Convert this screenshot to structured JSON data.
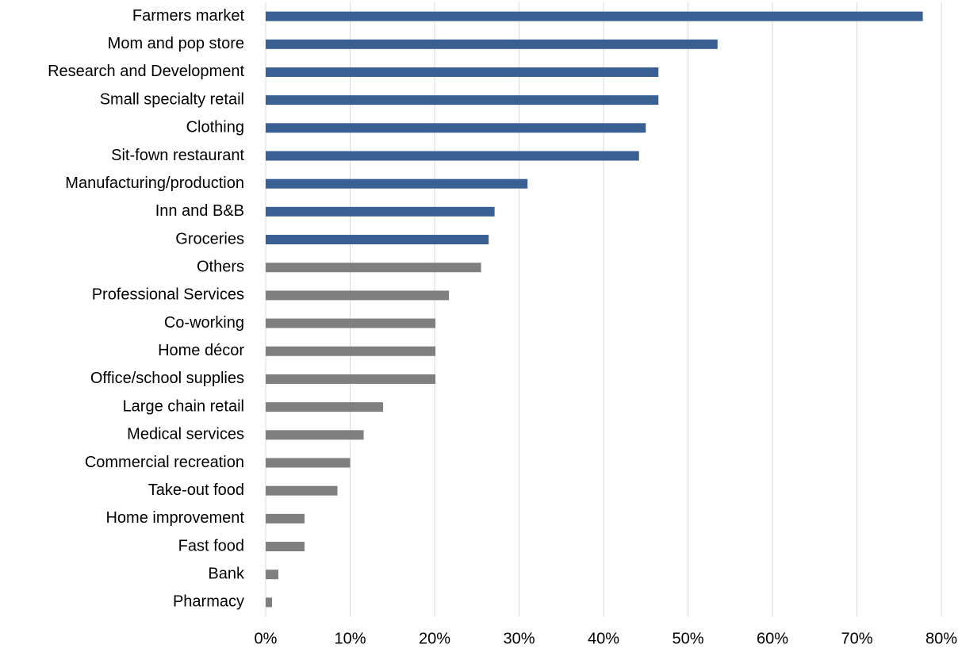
{
  "chart_data": {
    "type": "hbar",
    "categories": [
      "Farmers market",
      "Mom and pop store",
      "Research and Development",
      "Small specialty retail",
      "Clothing",
      "Sit-fown restaurant",
      "Manufacturing/production",
      "Inn and B&B",
      "Groceries",
      "Others",
      "Professional Services",
      "Co-working",
      "Home décor",
      "Office/school supplies",
      "Large chain retail",
      "Medical services",
      "Commercial recreation",
      "Take-out food",
      "Home improvement",
      "Fast food",
      "Bank",
      "Pharmacy"
    ],
    "values": [
      77.8,
      53.5,
      46.5,
      46.5,
      45,
      44.2,
      31,
      27.1,
      26.4,
      25.5,
      21.7,
      20.1,
      20.1,
      20.1,
      13.9,
      11.6,
      10,
      8.5,
      4.6,
      4.6,
      1.5,
      0.75
    ],
    "colors": [
      "#3a5f93",
      "#3a5f93",
      "#3a5f93",
      "#3a5f93",
      "#3a5f93",
      "#3a5f93",
      "#3a5f93",
      "#3a5f93",
      "#3a5f93",
      "#7f7f7f",
      "#7f7f7f",
      "#7f7f7f",
      "#7f7f7f",
      "#7f7f7f",
      "#7f7f7f",
      "#7f7f7f",
      "#7f7f7f",
      "#7f7f7f",
      "#7f7f7f",
      "#7f7f7f",
      "#7f7f7f",
      "#7f7f7f"
    ],
    "xlim": [
      0,
      80
    ],
    "xticks": [
      {
        "value": 0,
        "label": "0%"
      },
      {
        "value": 10,
        "label": "10%"
      },
      {
        "value": 20,
        "label": "20%"
      },
      {
        "value": 30,
        "label": "30%"
      },
      {
        "value": 40,
        "label": "40%"
      },
      {
        "value": 50,
        "label": "50%"
      },
      {
        "value": 60,
        "label": "60%"
      },
      {
        "value": 70,
        "label": "70%"
      },
      {
        "value": 80,
        "label": "80%"
      }
    ],
    "grid": true
  }
}
